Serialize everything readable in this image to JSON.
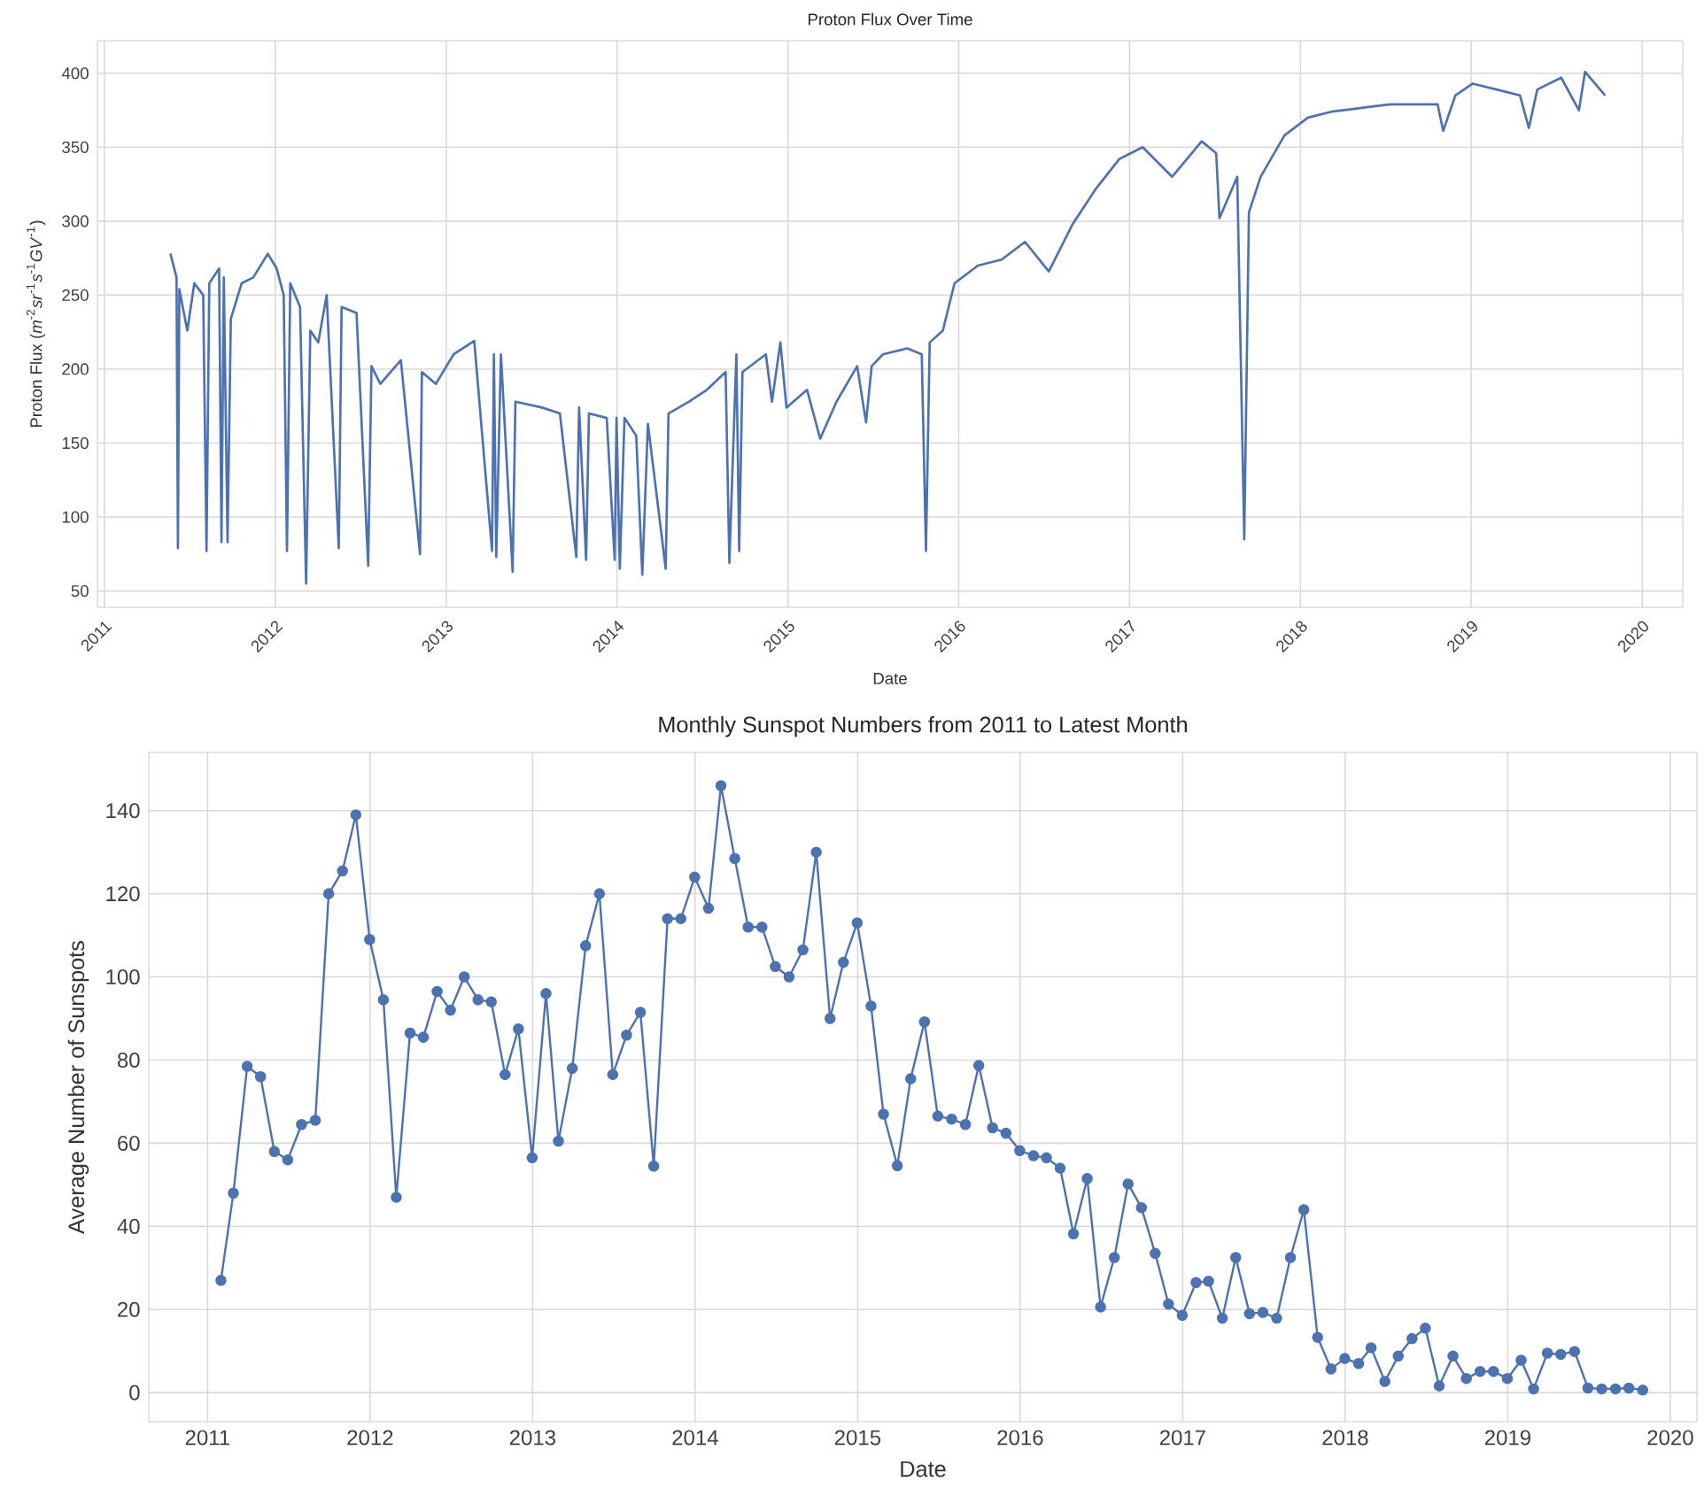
{
  "chart_data": [
    {
      "type": "line",
      "title": "Proton Flux Over Time",
      "xlabel": "Date",
      "ylabel": "Proton Flux (*m*$^{-2}$*sr*$^{-1}$*s*$^{-1}$*GV*$^{-1}$)",
      "color": "#4c72b0",
      "grid": true,
      "xlim": [
        "2010-12-17",
        "2020-03-28"
      ],
      "ylim": [
        39,
        422
      ],
      "xticks": [
        "2011",
        "2012",
        "2013",
        "2014",
        "2015",
        "2016",
        "2017",
        "2018",
        "2019",
        "2020"
      ],
      "yticks": [
        50,
        100,
        150,
        200,
        250,
        300,
        350,
        400
      ],
      "x": [
        "2011-05-22",
        "2011-06-04",
        "2011-06-07",
        "2011-06-10",
        "2011-06-27",
        "2011-07-12",
        "2011-07-31",
        "2011-08-07",
        "2011-08-13",
        "2011-09-03",
        "2011-09-08",
        "2011-09-13",
        "2011-09-21",
        "2011-09-28",
        "2011-10-21",
        "2011-11-15",
        "2011-12-16",
        "2012-01-04",
        "2012-01-19",
        "2012-01-26",
        "2012-02-02",
        "2012-02-23",
        "2012-03-07",
        "2012-03-16",
        "2012-04-02",
        "2012-04-20",
        "2012-05-16",
        "2012-05-22",
        "2012-06-23",
        "2012-07-18",
        "2012-07-25",
        "2012-08-13",
        "2012-09-26",
        "2012-11-06",
        "2012-11-10",
        "2012-12-10",
        "2013-01-17",
        "2013-03-02",
        "2013-04-09",
        "2013-04-13",
        "2013-04-18",
        "2013-04-28",
        "2013-05-23",
        "2013-05-29",
        "2013-07-25",
        "2013-09-01",
        "2013-10-06",
        "2013-10-12",
        "2013-10-27",
        "2013-11-02",
        "2013-12-10",
        "2013-12-27",
        "2013-12-31",
        "2014-01-07",
        "2014-01-17",
        "2014-02-11",
        "2014-02-24",
        "2014-03-08",
        "2014-04-15",
        "2014-04-21",
        "2014-06-04",
        "2014-07-12",
        "2014-08-21",
        "2014-08-29",
        "2014-09-13",
        "2014-09-19",
        "2014-09-26",
        "2014-11-15",
        "2014-11-28",
        "2014-12-16",
        "2014-12-29",
        "2015-02-11",
        "2015-03-11",
        "2015-04-15",
        "2015-05-29",
        "2015-06-17",
        "2015-06-29",
        "2015-07-23",
        "2015-09-13",
        "2015-10-14",
        "2015-10-23",
        "2015-10-31",
        "2015-11-28",
        "2015-12-23",
        "2016-02-11",
        "2016-04-02",
        "2016-05-22",
        "2016-07-12",
        "2016-09-01",
        "2016-10-21",
        "2016-12-10",
        "2017-01-29",
        "2017-04-02",
        "2017-06-04",
        "2017-07-05",
        "2017-07-12",
        "2017-08-19",
        "2017-09-03",
        "2017-09-13",
        "2017-10-08",
        "2017-11-28",
        "2018-01-17",
        "2018-03-08",
        "2018-05-22",
        "2018-07-12",
        "2018-10-21",
        "2018-11-02",
        "2018-11-28",
        "2019-01-04",
        "2019-02-24",
        "2019-04-15",
        "2019-05-04",
        "2019-05-22",
        "2019-07-12",
        "2019-08-19",
        "2019-09-01",
        "2019-10-14"
      ],
      "values": [
        278,
        262,
        79,
        254,
        226,
        258,
        250,
        77,
        258,
        268,
        83,
        262,
        83,
        234,
        258,
        262,
        278,
        268,
        250,
        77,
        258,
        242,
        55,
        226,
        218,
        250,
        79,
        242,
        238,
        67,
        202,
        190,
        206,
        75,
        198,
        190,
        210,
        219,
        77,
        210,
        73,
        210,
        63,
        178,
        174,
        170,
        73,
        174,
        71,
        170,
        167,
        71,
        167,
        65,
        167,
        155,
        61,
        163,
        65,
        170,
        178,
        186,
        198,
        69,
        210,
        77,
        198,
        210,
        178,
        218,
        174,
        186,
        153,
        178,
        202,
        164,
        202,
        210,
        214,
        210,
        77,
        218,
        226,
        258,
        270,
        274,
        286,
        266,
        298,
        322,
        342,
        350,
        330,
        354,
        346,
        302,
        330,
        85,
        306,
        330,
        358,
        370,
        374,
        377,
        379,
        379,
        361,
        385,
        393,
        389,
        385,
        363,
        389,
        397,
        375,
        401,
        385
      ]
    },
    {
      "type": "line",
      "title": "Monthly Sunspot Numbers from 2011 to Latest Month",
      "xlabel": "Date",
      "ylabel": "Average Number of Sunspots",
      "color": "#4c72b0",
      "grid": true,
      "marker": "circle",
      "xlim": [
        "2010-08-22",
        "2020-03-01"
      ],
      "ylim": [
        -7,
        154
      ],
      "xticks": [
        "2011",
        "2012",
        "2013",
        "2014",
        "2015",
        "2016",
        "2017",
        "2018",
        "2019",
        "2020"
      ],
      "yticks": [
        0,
        20,
        40,
        60,
        80,
        100,
        120,
        140
      ],
      "x": [
        "2011-01-31",
        "2011-02-28",
        "2011-03-31",
        "2011-04-30",
        "2011-05-31",
        "2011-06-30",
        "2011-07-31",
        "2011-08-31",
        "2011-09-30",
        "2011-10-31",
        "2011-11-30",
        "2011-12-31",
        "2012-01-31",
        "2012-02-29",
        "2012-03-31",
        "2012-04-30",
        "2012-05-31",
        "2012-06-30",
        "2012-07-31",
        "2012-08-31",
        "2012-09-30",
        "2012-10-31",
        "2012-11-30",
        "2012-12-31",
        "2013-01-31",
        "2013-02-28",
        "2013-03-31",
        "2013-04-30",
        "2013-05-31",
        "2013-06-30",
        "2013-07-31",
        "2013-08-31",
        "2013-09-30",
        "2013-10-31",
        "2013-11-30",
        "2013-12-31",
        "2014-01-31",
        "2014-02-28",
        "2014-03-31",
        "2014-04-30",
        "2014-05-31",
        "2014-06-30",
        "2014-07-31",
        "2014-08-31",
        "2014-09-30",
        "2014-10-31",
        "2014-11-30",
        "2014-12-31",
        "2015-01-31",
        "2015-02-28",
        "2015-03-31",
        "2015-04-30",
        "2015-05-31",
        "2015-06-30",
        "2015-07-31",
        "2015-08-31",
        "2015-09-30",
        "2015-10-31",
        "2015-11-30",
        "2015-12-31",
        "2016-01-31",
        "2016-02-29",
        "2016-03-31",
        "2016-04-30",
        "2016-05-31",
        "2016-06-30",
        "2016-07-31",
        "2016-08-31",
        "2016-09-30",
        "2016-10-31",
        "2016-11-30",
        "2016-12-31",
        "2017-01-31",
        "2017-02-28",
        "2017-03-31",
        "2017-04-30",
        "2017-05-31",
        "2017-06-30",
        "2017-07-31",
        "2017-08-31",
        "2017-09-30",
        "2017-10-31",
        "2017-11-30",
        "2017-12-31",
        "2018-01-31",
        "2018-02-28",
        "2018-03-31",
        "2018-04-30",
        "2018-05-31",
        "2018-06-30",
        "2018-07-31",
        "2018-08-31",
        "2018-09-30",
        "2018-10-31",
        "2018-11-30",
        "2018-12-31",
        "2019-01-31",
        "2019-02-28",
        "2019-03-31",
        "2019-04-30",
        "2019-05-31",
        "2019-06-30",
        "2019-07-31",
        "2019-08-31",
        "2019-09-30",
        "2019-10-31"
      ],
      "values": [
        27,
        48,
        78.5,
        76,
        58,
        56,
        64.5,
        65.5,
        120,
        125.5,
        139,
        109,
        94.5,
        47,
        86.5,
        85.5,
        96.5,
        92,
        100,
        94.5,
        94,
        76.5,
        87.5,
        56.5,
        96,
        60.5,
        78,
        107.5,
        120,
        76.5,
        86,
        91.5,
        54.5,
        114,
        114,
        124,
        116.5,
        146,
        128.5,
        112,
        112,
        102.5,
        100,
        106.5,
        130,
        90,
        103.5,
        113,
        93,
        67,
        54.6,
        75.5,
        89.2,
        66.5,
        65.8,
        64.5,
        78.7,
        63.7,
        62.4,
        58.2,
        57,
        56.5,
        54,
        38.2,
        51.5,
        20.6,
        32.5,
        50.2,
        44.5,
        33.5,
        21.3,
        18.6,
        26.5,
        26.8,
        17.9,
        32.5,
        19,
        19.3,
        17.9,
        32.5,
        44,
        13.3,
        5.7,
        8.2,
        7,
        10.8,
        2.7,
        8.8,
        13,
        15.5,
        1.6,
        8.8,
        3.4,
        5.1,
        5.1,
        3.4,
        7.8,
        0.9,
        9.5,
        9.2,
        9.9,
        1.1,
        0.9,
        0.9,
        1.1,
        0.6
      ]
    }
  ]
}
